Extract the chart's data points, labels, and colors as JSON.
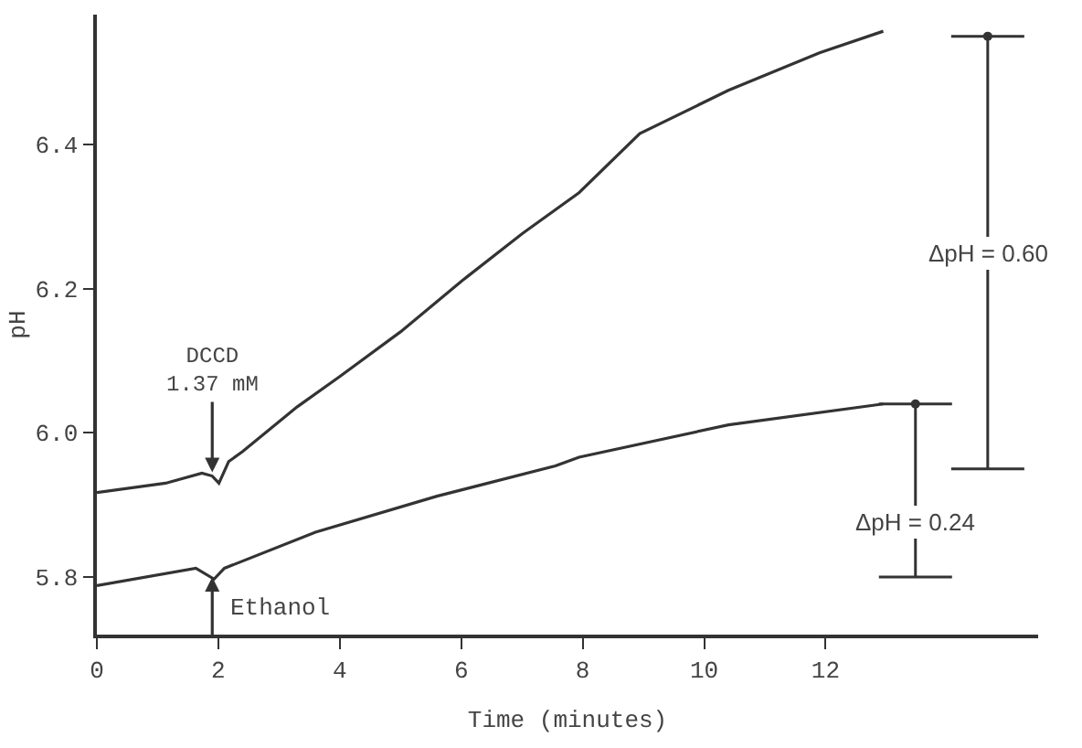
{
  "chart_data": {
    "type": "line",
    "xlabel": "Time (minutes)",
    "ylabel": "pH",
    "xlim": [
      0,
      15.5
    ],
    "xticks": [
      0,
      2,
      4,
      6,
      8,
      10,
      12
    ],
    "ylim": [
      5.72,
      6.58
    ],
    "yticks": [
      5.8,
      {
        "value": 6.0,
        "label": "6.0"
      },
      6.2,
      6.4
    ],
    "marker": "none",
    "line_style": "solid",
    "series": [
      {
        "color": "#333333",
        "x": [
          0,
          1.13,
          1.73,
          1.9,
          2.01,
          2.17,
          2.4,
          3.3,
          4,
          5,
          6,
          7,
          7.94,
          8.94,
          10.4,
          11.9,
          12.95
        ],
        "values": [
          5.917,
          5.93,
          5.944,
          5.94,
          5.93,
          5.96,
          5.974,
          6.036,
          6.078,
          6.14,
          6.21,
          6.276,
          6.333,
          6.415,
          6.475,
          6.527,
          6.557
        ]
      },
      {
        "color": "#333333",
        "x": [
          0,
          1.63,
          1.93,
          2.1,
          3.6,
          5.6,
          7.55,
          7.94,
          10.4,
          12.95
        ],
        "values": [
          5.788,
          5.812,
          5.797,
          5.812,
          5.862,
          5.912,
          5.954,
          5.966,
          6.011,
          6.04
        ]
      },
      {
        "type": "scatter",
        "marker": "circle",
        "color": "#333333",
        "x": [
          14.67,
          13.48
        ],
        "values": [
          6.55,
          6.04
        ],
        "errors": [
          [
            5.95,
            6.55
          ],
          [
            5.8,
            6.04
          ]
        ]
      }
    ],
    "annotations": [
      {
        "text": "DCCD\n1.37 mM",
        "x": 1.9,
        "y": 5.945
      },
      {
        "text": "Ethanol",
        "x": 1.9,
        "y": 5.8
      },
      {
        "text": "ΔpH = 0.60",
        "x": 14.67,
        "y": 6.25
      },
      {
        "text": "ΔpH = 0.24",
        "x": 13.48,
        "y": 5.875
      }
    ]
  }
}
